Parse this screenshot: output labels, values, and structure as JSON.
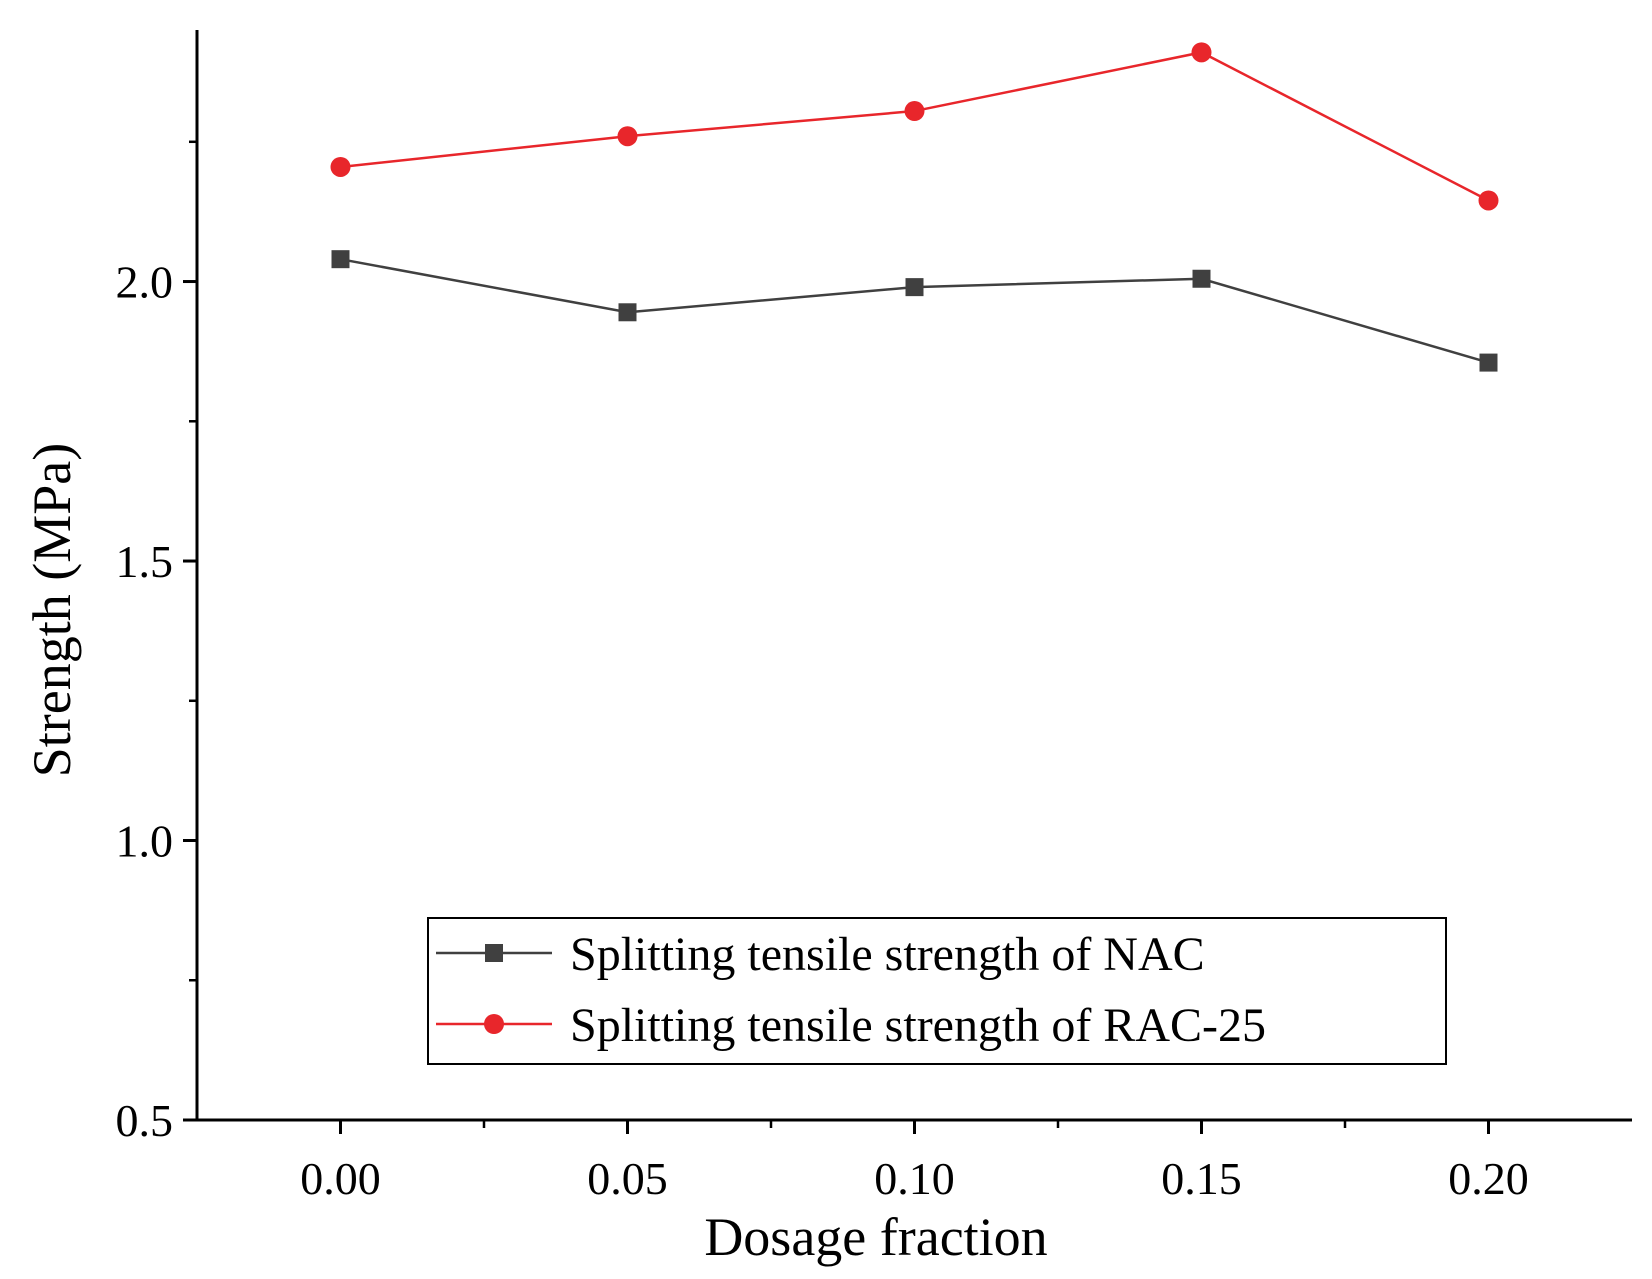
{
  "chart_data": {
    "type": "line",
    "title": "",
    "xlabel": "Dosage fraction",
    "ylabel": "Strength (MPa)",
    "x": [
      0.0,
      0.05,
      0.1,
      0.15,
      0.2
    ],
    "x_tick_labels": [
      "0.00",
      "0.05",
      "0.10",
      "0.15",
      "0.20"
    ],
    "xlim": [
      -0.025,
      0.225
    ],
    "ylim": [
      0.5,
      2.45
    ],
    "y_ticks": [
      0.5,
      1.0,
      1.5,
      2.0
    ],
    "y_tick_labels": [
      "0.5",
      "1.0",
      "1.5",
      "2.0"
    ],
    "grid": false,
    "legend_position": "bottom-center",
    "series": [
      {
        "name": "Splitting tensile strength of NAC",
        "values": [
          2.04,
          1.945,
          1.99,
          2.005,
          1.855
        ],
        "color": "#404040",
        "marker": "square"
      },
      {
        "name": "Splitting tensile strength of RAC-25",
        "values": [
          2.205,
          2.26,
          2.305,
          2.41,
          2.145
        ],
        "color": "#e8262b",
        "marker": "circle"
      }
    ]
  }
}
